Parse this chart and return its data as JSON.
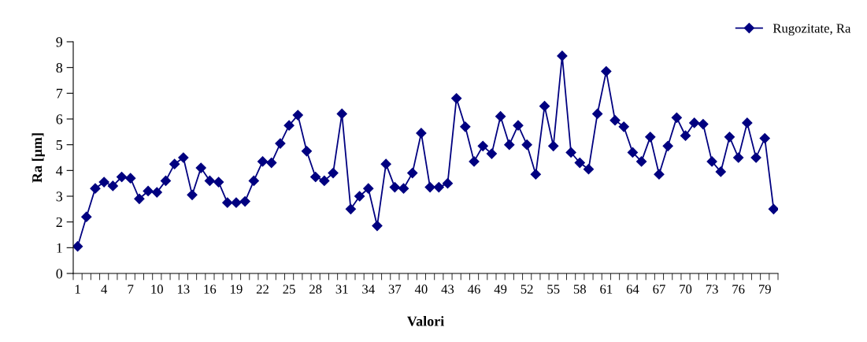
{
  "chart_data": {
    "type": "line",
    "xlabel": "Valori",
    "ylabel": "Ra [µm]",
    "categories": [
      "1",
      null,
      null,
      "4",
      null,
      null,
      "7",
      null,
      null,
      "10",
      null,
      null,
      "13",
      null,
      null,
      "16",
      null,
      null,
      "19",
      null,
      null,
      "22",
      null,
      null,
      "25",
      null,
      null,
      "28",
      null,
      null,
      "31",
      null,
      null,
      "34",
      null,
      null,
      "37",
      null,
      null,
      "40",
      null,
      null,
      "43",
      null,
      null,
      "46",
      null,
      null,
      "49",
      null,
      null,
      "52",
      null,
      null,
      "55",
      null,
      null,
      "58",
      null,
      null,
      "61",
      null,
      null,
      "64",
      null,
      null,
      "67",
      null,
      null,
      "70",
      null,
      null,
      "73",
      null,
      null,
      "76",
      null,
      null,
      "79",
      null
    ],
    "series": [
      {
        "name": "Rugozitate, Ra",
        "color": "#000080",
        "values": [
          1.05,
          2.2,
          3.3,
          3.55,
          3.4,
          3.75,
          3.7,
          2.9,
          3.2,
          3.15,
          3.6,
          4.25,
          4.5,
          3.05,
          4.1,
          3.6,
          3.55,
          2.75,
          2.75,
          2.8,
          3.6,
          4.35,
          4.3,
          5.05,
          5.75,
          6.15,
          4.75,
          3.75,
          3.6,
          3.9,
          6.2,
          2.5,
          3.0,
          3.3,
          1.85,
          4.25,
          3.35,
          3.3,
          3.9,
          5.45,
          3.35,
          3.35,
          3.5,
          6.8,
          5.7,
          4.35,
          4.95,
          4.65,
          6.1,
          5.0,
          5.75,
          5.0,
          3.85,
          6.5,
          4.95,
          8.45,
          4.7,
          4.3,
          4.05,
          6.2,
          7.85,
          5.95,
          5.7,
          4.7,
          4.35,
          5.3,
          3.85,
          4.95,
          6.05,
          5.35,
          5.85,
          5.8,
          4.35,
          3.95,
          5.3,
          4.5,
          5.85,
          4.5,
          5.25,
          2.5
        ]
      }
    ],
    "ylim": [
      0,
      9
    ],
    "yticks": [
      0,
      1,
      2,
      3,
      4,
      5,
      6,
      7,
      8,
      9
    ],
    "grid": false,
    "legend": "top right",
    "marker": "diamond",
    "line_style": "solid"
  }
}
